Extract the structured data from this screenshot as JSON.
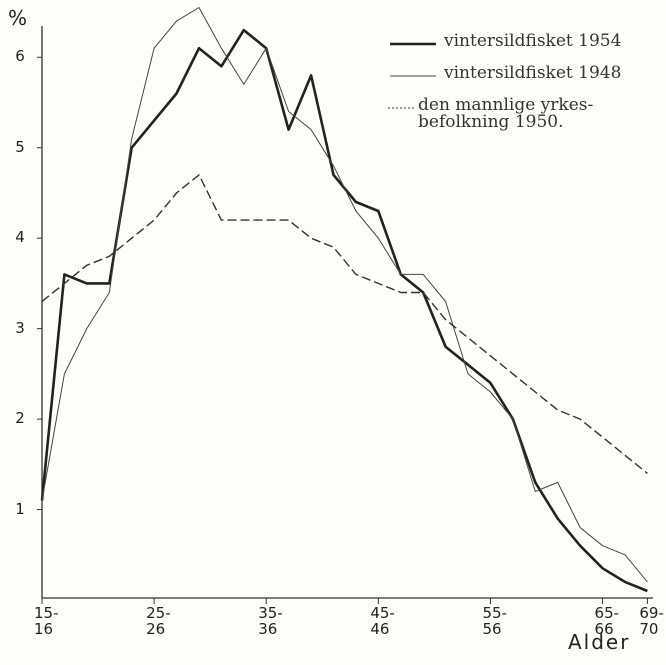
{
  "chart_data": {
    "type": "line",
    "ylabel": "%",
    "xlabel": "Alder",
    "x": [
      15,
      17,
      19,
      21,
      23,
      25,
      27,
      29,
      31,
      33,
      35,
      37,
      39,
      41,
      43,
      45,
      47,
      49,
      51,
      53,
      55,
      57,
      59,
      61,
      63,
      65,
      67,
      69
    ],
    "xlim": [
      15,
      69.5
    ],
    "xticks": [
      {
        "value": 15,
        "label": "15-\n16"
      },
      {
        "value": 25,
        "label": "25-\n26"
      },
      {
        "value": 35,
        "label": "35-\n36"
      },
      {
        "value": 45,
        "label": "45-\n46"
      },
      {
        "value": 55,
        "label": "55-\n56"
      },
      {
        "value": 65,
        "label": "65-\n66"
      },
      {
        "value": 69,
        "label": "69-\n70"
      }
    ],
    "ylim": [
      0,
      6.6
    ],
    "yticks": [
      1,
      2,
      3,
      4,
      5,
      6
    ],
    "series": [
      {
        "name": "vintersildfisket 1954",
        "color": "#222222",
        "width": 2.6,
        "dash": false,
        "values": [
          1.1,
          3.6,
          3.5,
          3.5,
          5.0,
          5.3,
          5.6,
          6.1,
          5.9,
          6.3,
          6.1,
          5.2,
          5.8,
          4.7,
          4.4,
          4.3,
          3.6,
          3.4,
          2.8,
          2.6,
          2.4,
          2.0,
          1.3,
          0.9,
          0.6,
          0.35,
          0.2,
          0.1
        ]
      },
      {
        "name": "vintersildfisket 1948",
        "color": "#444444",
        "width": 1,
        "dash": false,
        "values": [
          1.1,
          2.5,
          3.0,
          3.4,
          5.1,
          6.1,
          6.4,
          6.55,
          6.1,
          5.7,
          6.1,
          5.4,
          5.2,
          4.8,
          4.3,
          4.0,
          3.6,
          3.6,
          3.3,
          2.5,
          2.3,
          2.0,
          1.2,
          1.3,
          0.8,
          0.6,
          0.5,
          0.2
        ]
      },
      {
        "name": "den mannlige yrkes-\nbefolkning 1950.",
        "color": "#333333",
        "width": 1.4,
        "dash": true,
        "values": [
          3.3,
          3.5,
          3.7,
          3.8,
          4.0,
          4.2,
          4.5,
          4.7,
          4.2,
          4.2,
          4.2,
          4.2,
          4.0,
          3.9,
          3.6,
          3.5,
          3.4,
          3.4,
          3.1,
          2.9,
          2.7,
          2.5,
          2.3,
          2.1,
          2.0,
          1.8,
          1.6,
          1.4
        ]
      }
    ],
    "legend": "upper right"
  }
}
